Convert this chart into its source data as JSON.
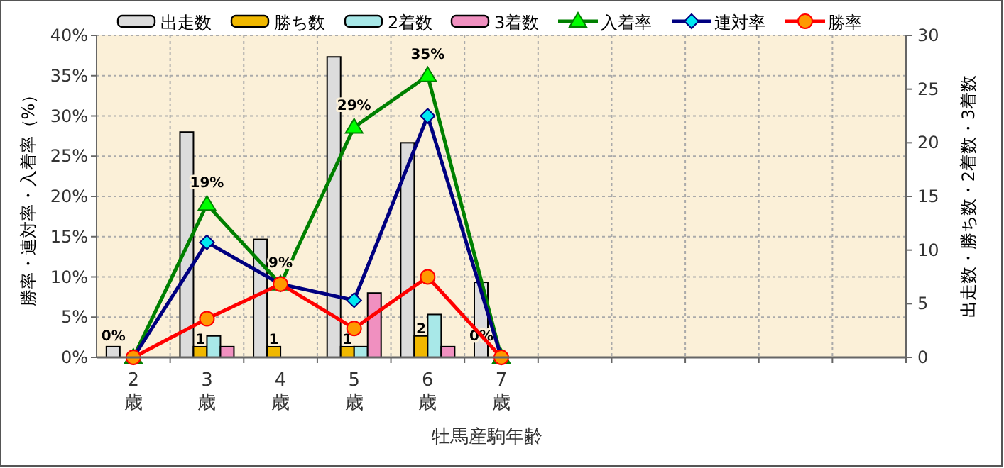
{
  "chart_data": {
    "type": "bar",
    "xlabel": "牡馬産駒年齢",
    "ylabel": "勝率・連対率・入着率（%）",
    "y2label": "出走数・勝ち数・2着数・3着数",
    "categories": [
      "2歳",
      "3歳",
      "4歳",
      "5歳",
      "6歳",
      "7歳",
      null,
      null,
      null,
      null,
      null
    ],
    "ylim": [
      0,
      40
    ],
    "yticks": [
      {
        "value": 0,
        "label": "0%"
      },
      {
        "value": 5,
        "label": "5%"
      },
      {
        "value": 10,
        "label": "10%"
      },
      {
        "value": 15,
        "label": "15%"
      },
      {
        "value": 20,
        "label": "20%"
      },
      {
        "value": 25,
        "label": "25%"
      },
      {
        "value": 30,
        "label": "30%"
      },
      {
        "value": 35,
        "label": "35%"
      },
      {
        "value": 40,
        "label": "40%"
      }
    ],
    "y2lim": [
      0,
      30
    ],
    "y2ticks": [
      0,
      5,
      10,
      15,
      20,
      25,
      30
    ],
    "grid": true,
    "legend": "top",
    "series": [
      {
        "name": "出走数",
        "axis": "y2",
        "color": "#dcdcdc",
        "values": [
          1,
          21,
          11,
          28,
          20,
          7,
          null,
          null,
          null,
          null,
          null
        ]
      },
      {
        "name": "勝ち数",
        "axis": "y2",
        "color": "#f0b800",
        "values": [
          0,
          1,
          1,
          1,
          2,
          0,
          null,
          null,
          null,
          null,
          null
        ],
        "value_labels": [
          null,
          "1",
          "1",
          "1",
          "2",
          null,
          null,
          null,
          null,
          null,
          null
        ]
      },
      {
        "name": "2着数",
        "axis": "y2",
        "color": "#a8e8e8",
        "values": [
          0,
          2,
          0,
          1,
          4,
          0,
          null,
          null,
          null,
          null,
          null
        ]
      },
      {
        "name": "3着数",
        "axis": "y2",
        "color": "#f090c0",
        "values": [
          0,
          1,
          0,
          6,
          1,
          0,
          null,
          null,
          null,
          null,
          null
        ]
      },
      {
        "name": "入着率",
        "type": "line",
        "color": "#008000",
        "marker": "triangle",
        "values": [
          0,
          19.0,
          9.1,
          28.6,
          35.0,
          0,
          null,
          null,
          null,
          null,
          null
        ],
        "value_labels": [
          "0%",
          "19%",
          "9%",
          "29%",
          "35%",
          "0%",
          null,
          null,
          null,
          null,
          null
        ]
      },
      {
        "name": "連対率",
        "type": "line",
        "color": "#000080",
        "marker": "diamond",
        "values": [
          0,
          14.3,
          9.1,
          7.1,
          30.0,
          0,
          null,
          null,
          null,
          null,
          null
        ]
      },
      {
        "name": "勝率",
        "type": "line",
        "color": "#ff0000",
        "marker": "circle",
        "values": [
          0,
          4.8,
          9.1,
          3.6,
          10.0,
          0,
          null,
          null,
          null,
          null,
          null
        ]
      }
    ]
  }
}
